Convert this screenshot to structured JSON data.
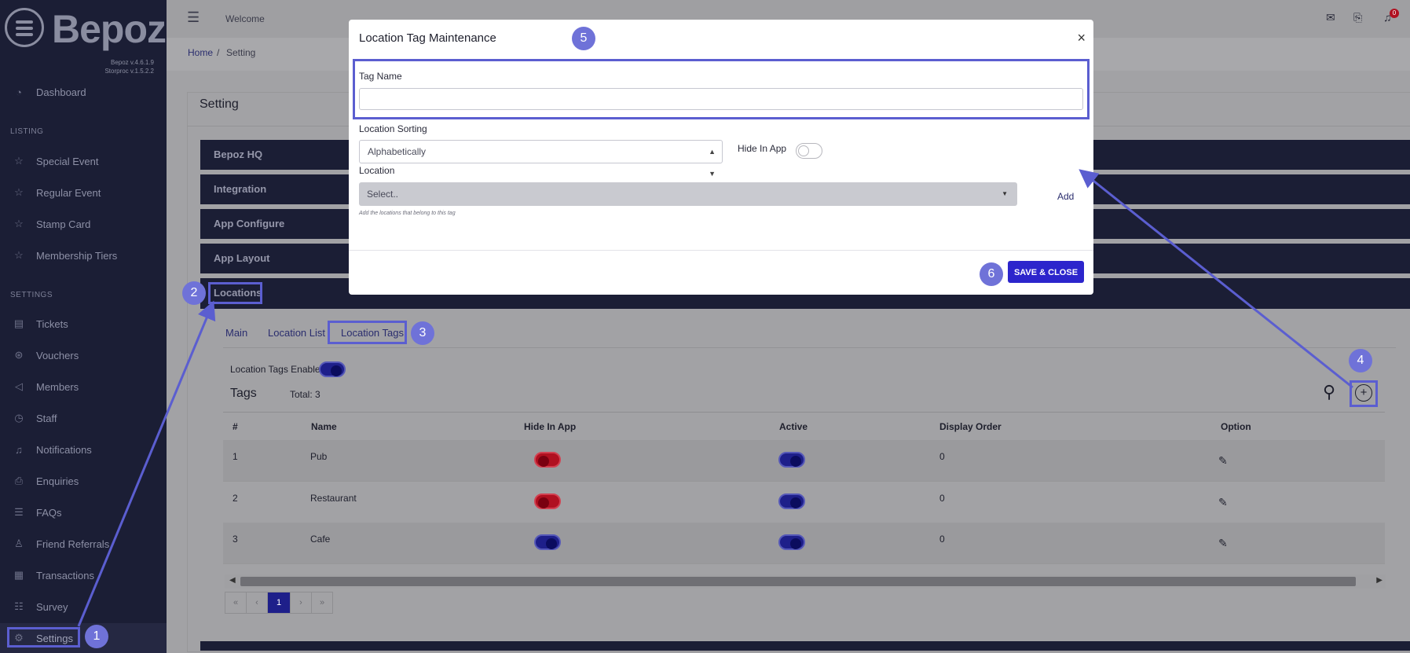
{
  "brand": {
    "logo_text": "Bepoz",
    "version_1": "Bepoz v.4.6.1.9",
    "version_2": "Storproc v.1.5.2.2"
  },
  "sidebar": {
    "dashboard": "Dashboard",
    "listing_header": "LISTING",
    "listing": [
      "Special Event",
      "Regular Event",
      "Stamp Card",
      "Membership Tiers"
    ],
    "settings_header": "SETTINGS",
    "settings": [
      "Tickets",
      "Vouchers",
      "Members",
      "Staff",
      "Notifications",
      "Enquiries",
      "FAQs",
      "Friend Referrals",
      "Transactions",
      "Survey",
      "Settings"
    ]
  },
  "topbar": {
    "welcome": "Welcome",
    "notif_count": "0"
  },
  "breadcrumb": {
    "home": "Home",
    "sep": "/",
    "current": "Setting"
  },
  "page": {
    "title": "Setting"
  },
  "accordions": [
    "Bepoz HQ",
    "Integration",
    "App Configure",
    "App Layout",
    "Locations"
  ],
  "tabs": [
    "Main",
    "Location List",
    "Location Tags"
  ],
  "tags_section": {
    "enable_label": "Location Tags Enable",
    "title": "Tags",
    "total": "Total: 3"
  },
  "table": {
    "headers": [
      "#",
      "Name",
      "Hide In App",
      "Active",
      "Display Order",
      "Option"
    ],
    "rows": [
      {
        "num": "1",
        "name": "Pub",
        "hide": false,
        "active": true,
        "order": "0"
      },
      {
        "num": "2",
        "name": "Restaurant",
        "hide": false,
        "active": true,
        "order": "0"
      },
      {
        "num": "3",
        "name": "Cafe",
        "hide": true,
        "active": true,
        "order": "0"
      }
    ]
  },
  "pagination": {
    "first": "«",
    "prev": "‹",
    "current": "1",
    "next": "›",
    "last": "»"
  },
  "modal": {
    "title": "Location Tag Maintenance",
    "close": "×",
    "tag_name_label": "Tag Name",
    "tag_name_value": "",
    "sorting_label": "Location Sorting",
    "sorting_value": "Alphabetically",
    "hide_label": "Hide In App",
    "location_label": "Location",
    "location_placeholder": "Select..",
    "location_hint": "Add the locations that belong to this tag",
    "add_label": "Add",
    "save_label": "SAVE & CLOSE"
  },
  "annotations": [
    "1",
    "2",
    "3",
    "4",
    "5",
    "6"
  ],
  "colors": {
    "accent": "#6f72d8",
    "sidebar": "#1b1e35",
    "primary_button": "#2c25cc"
  }
}
